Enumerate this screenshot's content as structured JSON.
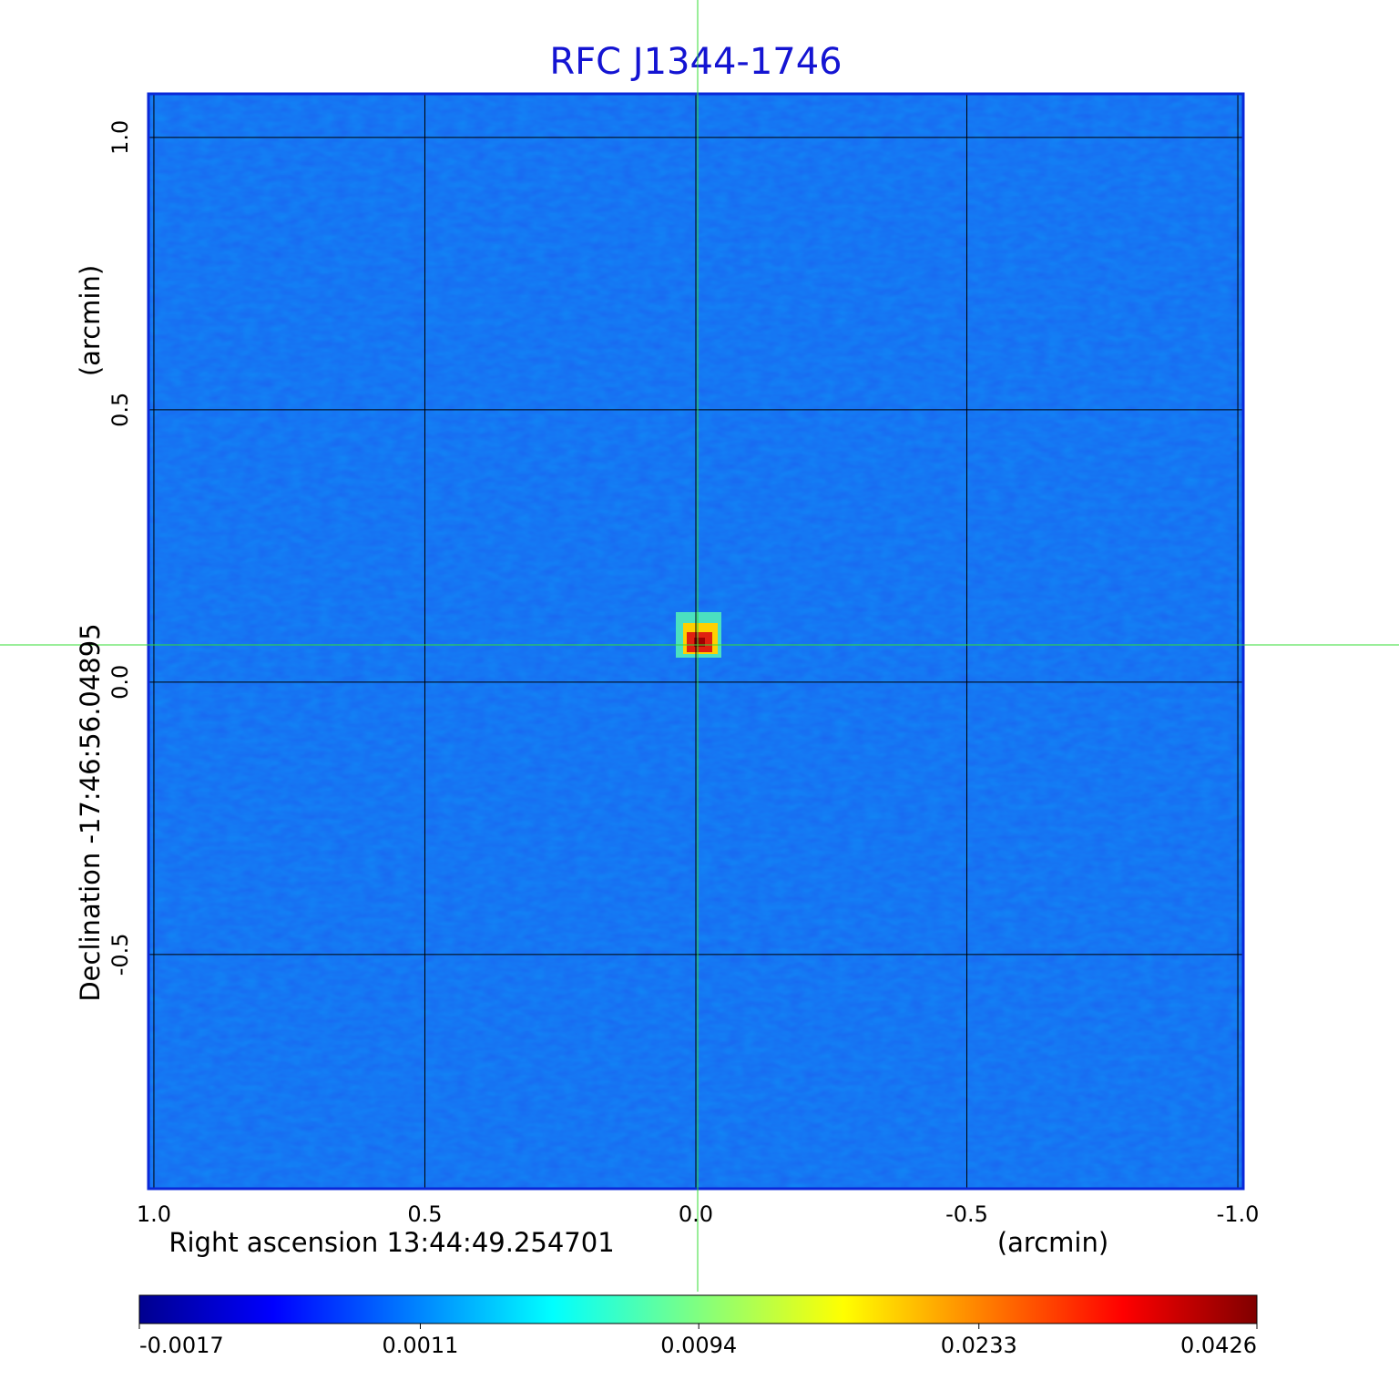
{
  "chart_data": {
    "type": "image",
    "title": "RFC J1344-1746",
    "x_label": "Right ascension  13:44:49.254701",
    "x_unit": "(arcmin)",
    "y_label": "Declination  -17:46:56.04895",
    "y_unit": "(arcmin)",
    "xlim": [
      1.01,
      -1.01
    ],
    "ylim": [
      -0.93,
      1.08
    ],
    "xticks": [
      {
        "value": 1,
        "label": "1.0"
      },
      0.5,
      {
        "value": 0,
        "label": "0.0"
      },
      -0.5,
      {
        "value": -1,
        "label": "-1.0"
      }
    ],
    "yticks": [
      {
        "value": 1,
        "label": "1.0"
      },
      0.5,
      {
        "value": 0,
        "label": "0.0"
      },
      -0.5
    ],
    "grid": true,
    "colorbar": {
      "scale": "sqrt",
      "lim": [
        -0.0017,
        0.0426
      ],
      "ticks": [
        -0.0017,
        0.0011,
        0.0094,
        0.0233,
        0.0426
      ]
    }
  }
}
